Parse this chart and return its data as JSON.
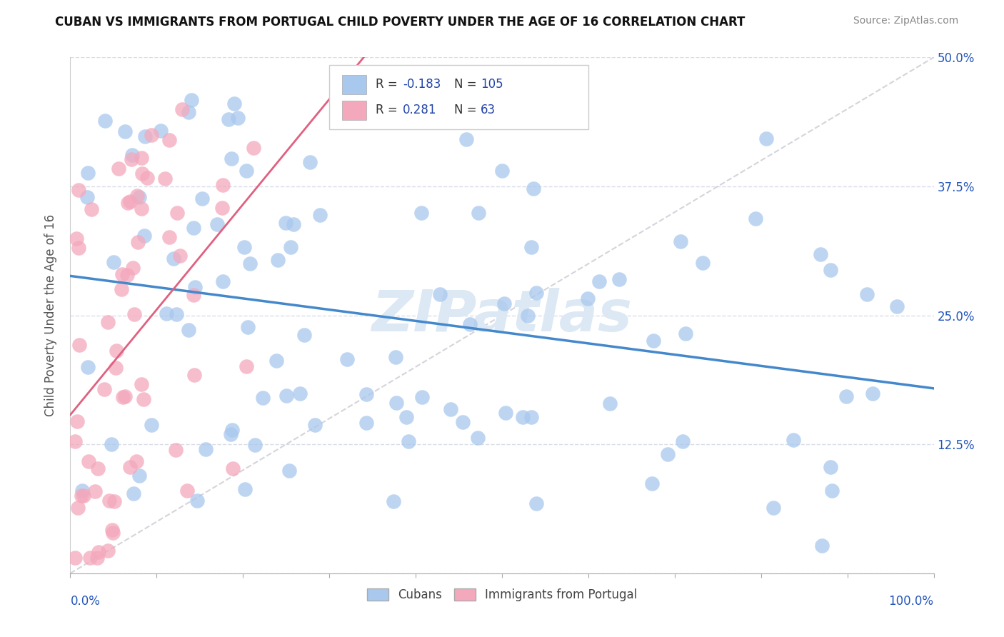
{
  "title": "CUBAN VS IMMIGRANTS FROM PORTUGAL CHILD POVERTY UNDER THE AGE OF 16 CORRELATION CHART",
  "source": "Source: ZipAtlas.com",
  "ylabel": "Child Poverty Under the Age of 16",
  "xlim": [
    0,
    1
  ],
  "ylim": [
    0,
    0.5
  ],
  "yticks": [
    0.0,
    0.125,
    0.25,
    0.375,
    0.5
  ],
  "ytick_labels": [
    "",
    "12.5%",
    "25.0%",
    "37.5%",
    "50.0%"
  ],
  "cubans_R": -0.183,
  "cubans_N": 105,
  "portugal_R": 0.281,
  "portugal_N": 63,
  "cubans_color": "#a8c8ee",
  "portugal_color": "#f4a8bc",
  "cubans_line_color": "#4488cc",
  "portugal_line_color": "#e06080",
  "diag_line_color": "#d0d0d8",
  "background_color": "#ffffff",
  "grid_color": "#d8dce8",
  "watermark_color": "#dce8f4",
  "legend_box_color": "#cccccc",
  "text_color": "#2244aa",
  "label_color": "#555555",
  "bottom_label_color": "#2255bb"
}
